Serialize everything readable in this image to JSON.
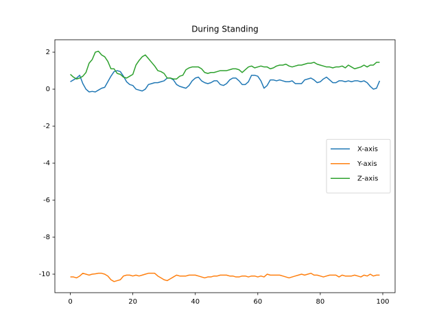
{
  "chart_data": {
    "type": "line",
    "title": "During Standing",
    "x": [
      0,
      1,
      2,
      3,
      4,
      5,
      6,
      7,
      8,
      9,
      10,
      11,
      12,
      13,
      14,
      15,
      16,
      17,
      18,
      19,
      20,
      21,
      22,
      23,
      24,
      25,
      26,
      27,
      28,
      29,
      30,
      31,
      32,
      33,
      34,
      35,
      36,
      37,
      38,
      39,
      40,
      41,
      42,
      43,
      44,
      45,
      46,
      47,
      48,
      49,
      50,
      51,
      52,
      53,
      54,
      55,
      56,
      57,
      58,
      59,
      60,
      61,
      62,
      63,
      64,
      65,
      66,
      67,
      68,
      69,
      70,
      71,
      72,
      73,
      74,
      75,
      76,
      77,
      78,
      79,
      80,
      81,
      82,
      83,
      84,
      85,
      86,
      87,
      88,
      89,
      90,
      91,
      92,
      93,
      94,
      95,
      96,
      97,
      98,
      99
    ],
    "series": [
      {
        "name": "X-axis",
        "color": "#1f77b4",
        "values": [
          0.4,
          0.5,
          0.6,
          0.75,
          0.3,
          0.0,
          -0.15,
          -0.12,
          -0.15,
          -0.05,
          0.05,
          0.1,
          0.4,
          0.7,
          0.95,
          1.0,
          0.95,
          0.7,
          0.4,
          0.25,
          0.2,
          0.0,
          -0.05,
          -0.1,
          0.0,
          0.25,
          0.3,
          0.35,
          0.35,
          0.4,
          0.45,
          0.6,
          0.6,
          0.5,
          0.25,
          0.15,
          0.1,
          0.05,
          0.2,
          0.45,
          0.6,
          0.65,
          0.45,
          0.35,
          0.3,
          0.35,
          0.45,
          0.45,
          0.25,
          0.2,
          0.3,
          0.5,
          0.6,
          0.6,
          0.45,
          0.25,
          0.25,
          0.4,
          0.75,
          0.75,
          0.7,
          0.45,
          0.05,
          0.2,
          0.5,
          0.5,
          0.45,
          0.5,
          0.45,
          0.4,
          0.4,
          0.45,
          0.3,
          0.3,
          0.3,
          0.5,
          0.55,
          0.6,
          0.5,
          0.35,
          0.4,
          0.55,
          0.65,
          0.5,
          0.35,
          0.35,
          0.45,
          0.45,
          0.4,
          0.45,
          0.4,
          0.45,
          0.45,
          0.4,
          0.45,
          0.35,
          0.15,
          0.0,
          0.05,
          0.45
        ]
      },
      {
        "name": "Y-axis",
        "color": "#ff7f0e",
        "values": [
          -10.15,
          -10.15,
          -10.2,
          -10.1,
          -9.95,
          -10.0,
          -10.05,
          -10.0,
          -9.98,
          -9.95,
          -9.95,
          -10.0,
          -10.1,
          -10.3,
          -10.4,
          -10.35,
          -10.3,
          -10.1,
          -10.05,
          -10.05,
          -10.1,
          -10.05,
          -10.1,
          -10.05,
          -10.0,
          -9.95,
          -9.95,
          -9.95,
          -10.1,
          -10.2,
          -10.3,
          -10.35,
          -10.25,
          -10.15,
          -10.05,
          -10.1,
          -10.1,
          -10.1,
          -10.05,
          -10.05,
          -10.05,
          -10.1,
          -10.15,
          -10.2,
          -10.15,
          -10.15,
          -10.1,
          -10.1,
          -10.05,
          -10.05,
          -10.05,
          -10.1,
          -10.1,
          -10.15,
          -10.15,
          -10.1,
          -10.1,
          -10.15,
          -10.1,
          -10.1,
          -10.15,
          -10.1,
          -10.15,
          -10.0,
          -10.05,
          -10.05,
          -10.05,
          -10.05,
          -10.1,
          -10.15,
          -10.2,
          -10.15,
          -10.1,
          -10.05,
          -10.0,
          -10.05,
          -10.0,
          -9.95,
          -10.05,
          -10.05,
          -10.1,
          -10.15,
          -10.1,
          -10.05,
          -10.05,
          -10.05,
          -10.15,
          -10.05,
          -10.1,
          -10.1,
          -10.1,
          -10.05,
          -10.1,
          -10.15,
          -10.05,
          -10.1,
          -10.0,
          -10.1,
          -10.05,
          -10.05
        ]
      },
      {
        "name": "Z-axis",
        "color": "#2ca02c",
        "values": [
          0.8,
          0.65,
          0.55,
          0.6,
          0.7,
          0.9,
          1.4,
          1.6,
          2.0,
          2.05,
          1.85,
          1.75,
          1.5,
          1.1,
          1.1,
          0.85,
          0.8,
          0.65,
          0.6,
          0.7,
          0.8,
          1.3,
          1.55,
          1.75,
          1.85,
          1.65,
          1.45,
          1.25,
          1.0,
          0.95,
          0.85,
          0.6,
          0.6,
          0.55,
          0.55,
          0.7,
          0.75,
          1.05,
          1.15,
          1.2,
          1.2,
          1.2,
          1.1,
          0.9,
          0.85,
          0.9,
          0.9,
          0.95,
          1.0,
          1.0,
          1.0,
          1.05,
          1.1,
          1.1,
          1.05,
          0.9,
          1.05,
          1.2,
          1.25,
          1.15,
          1.2,
          1.25,
          1.2,
          1.2,
          1.1,
          1.15,
          1.25,
          1.3,
          1.3,
          1.35,
          1.25,
          1.2,
          1.25,
          1.3,
          1.3,
          1.35,
          1.4,
          1.4,
          1.45,
          1.35,
          1.3,
          1.25,
          1.2,
          1.2,
          1.15,
          1.2,
          1.2,
          1.25,
          1.15,
          1.3,
          1.2,
          1.1,
          1.15,
          1.2,
          1.3,
          1.2,
          1.3,
          1.3,
          1.45,
          1.45
        ]
      }
    ],
    "xlim": [
      -4.95,
      103.95
    ],
    "xticks": [
      0,
      20,
      40,
      60,
      80,
      100
    ],
    "ylim": [
      -11.0,
      2.67
    ],
    "yticks": [
      -10,
      -8,
      -6,
      -4,
      -2,
      0,
      2
    ],
    "grid": false,
    "legend": "center right"
  }
}
